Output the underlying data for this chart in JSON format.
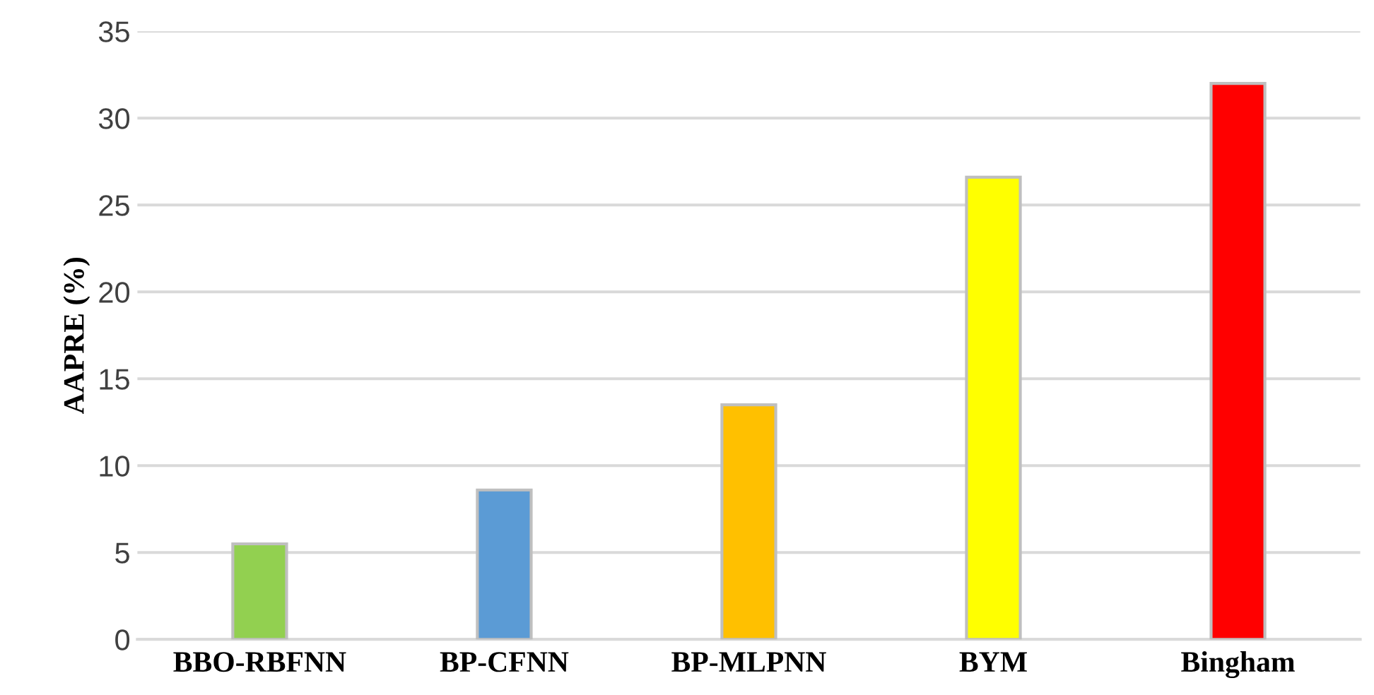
{
  "chart_data": {
    "type": "bar",
    "ylabel": "AAPRE (%)",
    "categories": [
      "BBO-RBFNN",
      "BP-CFNN",
      "BP-MLPNN",
      "BYM",
      "Bingham"
    ],
    "values": [
      5.5,
      8.6,
      13.5,
      26.6,
      32.0
    ],
    "colors": [
      "#92d050",
      "#5b9bd5",
      "#ffc000",
      "#ffff00",
      "#ff0000"
    ],
    "ylim": [
      0,
      35
    ],
    "yticks": [
      0,
      5,
      10,
      15,
      20,
      25,
      30,
      35
    ],
    "grid": "y",
    "legend": false
  }
}
